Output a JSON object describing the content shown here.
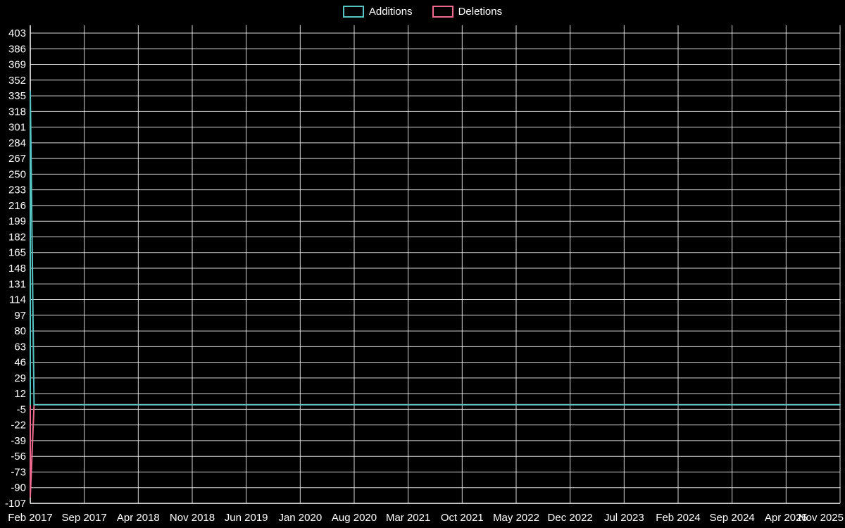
{
  "legend": {
    "items": [
      {
        "label": "Additions",
        "color": "#57c4c4"
      },
      {
        "label": "Deletions",
        "color": "#ef6a8e"
      }
    ]
  },
  "chart_data": {
    "type": "line",
    "title": "",
    "xlabel": "",
    "ylabel": "",
    "background": "#000000",
    "grid": true,
    "grid_color": "#ffffff",
    "axis_color": "#ffffff",
    "text_color": "#ffffff",
    "legend_position": "top-center",
    "x_tick_labels": [
      "Feb 2017",
      "Sep 2017",
      "Apr 2018",
      "Nov 2018",
      "Jun 2019",
      "Jan 2020",
      "Aug 2020",
      "Mar 2021",
      "Oct 2021",
      "May 2022",
      "Dec 2022",
      "Jul 2023",
      "Feb 2024",
      "Sep 2024",
      "Apr 2025",
      "Nov 2025"
    ],
    "y_ticks": [
      403,
      386,
      369,
      352,
      335,
      318,
      301,
      284,
      267,
      250,
      233,
      216,
      199,
      182,
      165,
      148,
      131,
      114,
      97,
      80,
      63,
      46,
      29,
      12,
      -5,
      -22,
      -39,
      -56,
      -73,
      -90,
      -107
    ],
    "ylim": [
      -107,
      403
    ],
    "series": [
      {
        "name": "Additions",
        "color": "#57c4c4",
        "points": [
          [
            0,
            0
          ],
          [
            0,
            340
          ],
          [
            0.07,
            0
          ],
          [
            15,
            0
          ]
        ]
      },
      {
        "name": "Deletions",
        "color": "#ef6a8e",
        "points": [
          [
            0,
            0
          ],
          [
            0,
            -100
          ],
          [
            0.07,
            0
          ],
          [
            15,
            0
          ]
        ]
      }
    ]
  }
}
